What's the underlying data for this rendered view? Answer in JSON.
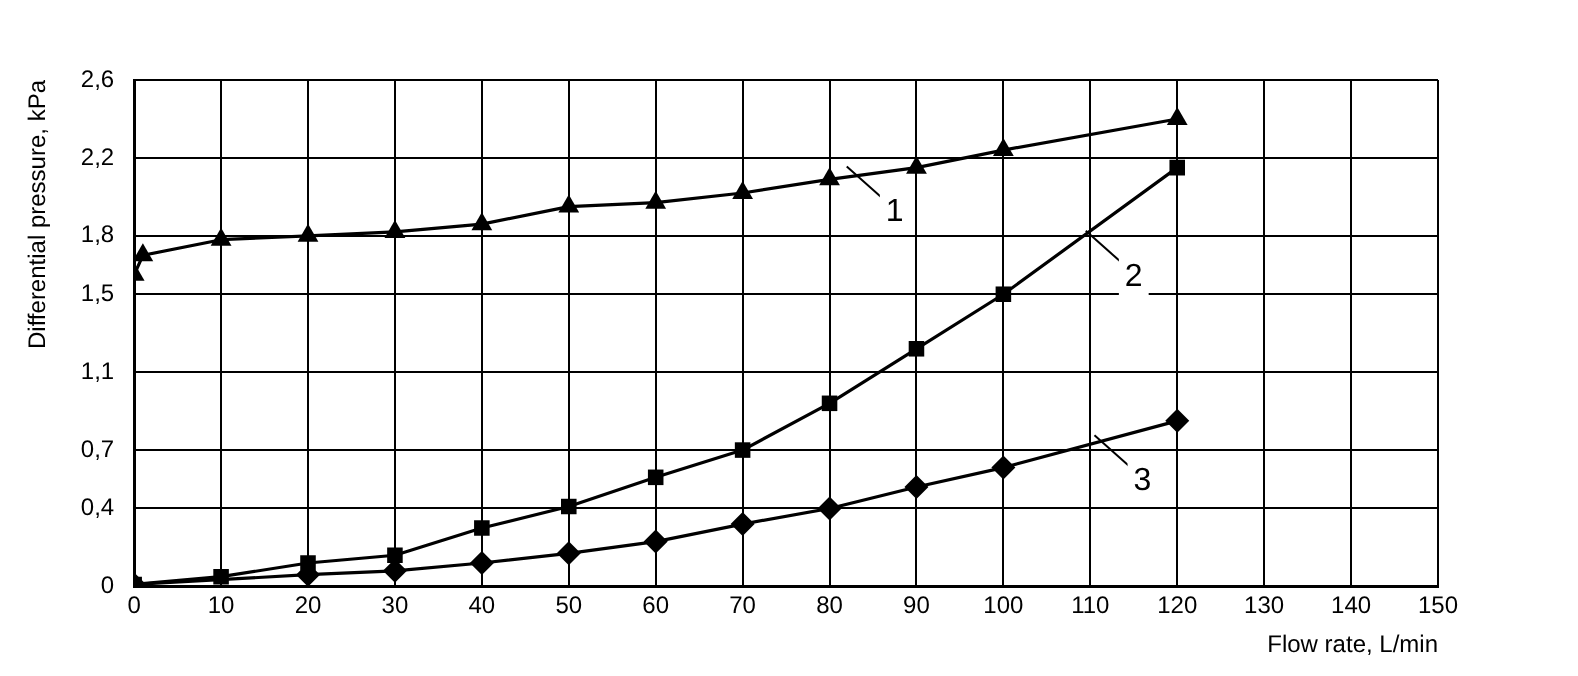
{
  "chart_data": {
    "type": "line",
    "xlabel": "Flow rate, L/min",
    "ylabel": "Differential pressure, kPa",
    "xlim": [
      0,
      150
    ],
    "xticks": [
      0,
      10,
      20,
      30,
      40,
      50,
      60,
      70,
      80,
      90,
      100,
      110,
      120,
      130,
      140,
      150
    ],
    "ylim": [
      0,
      2.6
    ],
    "yticks": [
      0,
      {
        "value": 0.4,
        "label": "0,4"
      },
      {
        "value": 0.7,
        "label": "0,7"
      },
      {
        "value": 1.1,
        "label": "1,1"
      },
      {
        "value": 1.5,
        "label": "1,5"
      },
      {
        "value": 1.8,
        "label": "1,8"
      },
      {
        "value": 2.2,
        "label": "2,2"
      },
      {
        "value": 2.6,
        "label": "2,6"
      }
    ],
    "grid": true,
    "legend": false,
    "line_style": "solid",
    "series": [
      {
        "color": "#000000",
        "marker": "triangle",
        "x": [
          0,
          1,
          10,
          20,
          30,
          40,
          50,
          60,
          70,
          80,
          90,
          100,
          120
        ],
        "values": [
          1.6,
          1.7,
          1.78,
          1.8,
          1.82,
          1.86,
          1.95,
          1.97,
          2.02,
          2.09,
          2.15,
          2.24,
          2.4
        ]
      },
      {
        "color": "#000000",
        "marker": "square",
        "x": [
          0,
          10,
          20,
          30,
          40,
          50,
          60,
          70,
          80,
          90,
          100,
          120
        ],
        "values": [
          0.01,
          0.05,
          0.12,
          0.16,
          0.3,
          0.41,
          0.56,
          0.7,
          0.94,
          1.22,
          1.5,
          2.15
        ]
      },
      {
        "color": "#000000",
        "marker": "diamond",
        "x": [
          0,
          10,
          20,
          30,
          40,
          50,
          60,
          70,
          80,
          90,
          100,
          120
        ],
        "values": [
          0.01,
          null,
          0.06,
          0.08,
          0.12,
          0.17,
          0.23,
          0.32,
          0.4,
          0.51,
          0.61,
          0.85
        ]
      }
    ],
    "annotations": [
      {
        "text": "1",
        "x": 87.5,
        "y": 1.93
      },
      {
        "text": "2",
        "x": 115,
        "y": 1.6
      },
      {
        "text": "3",
        "x": 116,
        "y": 0.55
      }
    ]
  }
}
